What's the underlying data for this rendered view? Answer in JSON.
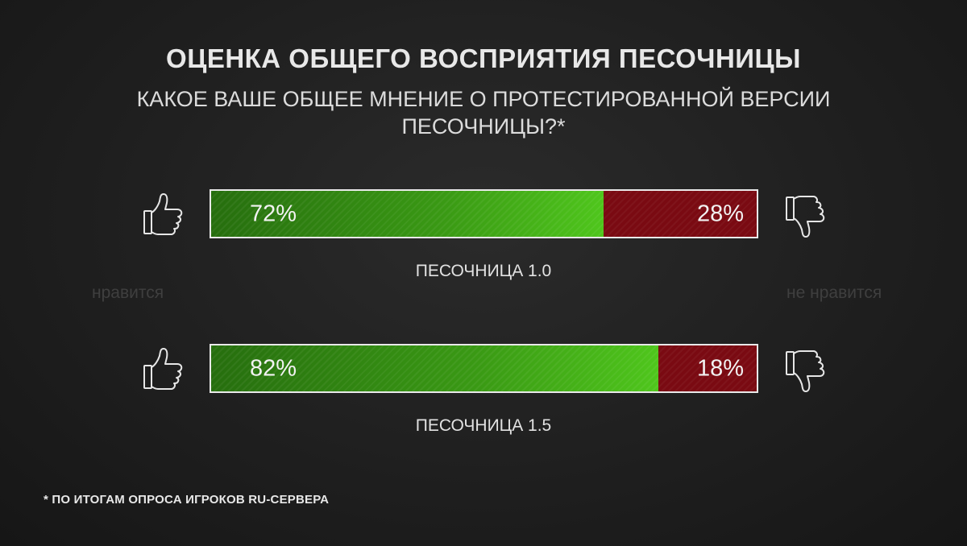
{
  "title": "ОЦЕНКА ОБЩЕГО ВОСПРИЯТИЯ ПЕСОЧНИЦЫ",
  "subtitle": "КАКОЕ ВАШЕ ОБЩЕЕ МНЕНИЕ О ПРОТЕСТИРОВАННОЙ ВЕРСИИ ПЕСОЧНИЦЫ?*",
  "legend": {
    "like": "нравится",
    "dislike": "не нравится"
  },
  "icons": {
    "like": "thumbs-up-icon",
    "dislike": "thumbs-down-icon"
  },
  "colors": {
    "like": "#3a9a14",
    "dislike": "#7a0a12",
    "background": "#222222"
  },
  "footnote": "* ПО ИТОГАМ ОПРОСА ИГРОКОВ RU-СЕРВЕРА",
  "chart_data": {
    "type": "bar",
    "orientation": "horizontal-stacked",
    "categories": [
      "ПЕСОЧНИЦА 1.0",
      "ПЕСОЧНИЦА 1.5"
    ],
    "series": [
      {
        "name": "нравится",
        "values": [
          72,
          82
        ],
        "labels": [
          "72%",
          "82%"
        ]
      },
      {
        "name": "не нравится",
        "values": [
          28,
          18
        ],
        "labels": [
          "28%",
          "18%"
        ]
      }
    ],
    "xlim": [
      0,
      100
    ],
    "grid": false
  }
}
